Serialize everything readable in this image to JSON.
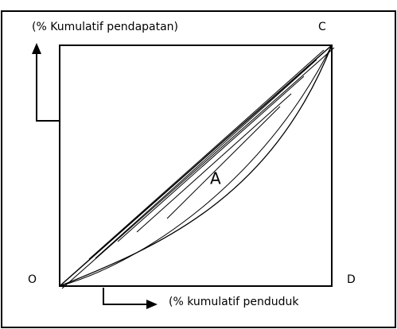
{
  "labels": {
    "y_axis": "(% Kumulatif pendapatan)",
    "corner_c": "C",
    "area": "A",
    "corner_o": "O",
    "corner_d": "D",
    "x_axis": "(% kumulatif penduduk"
  }
}
